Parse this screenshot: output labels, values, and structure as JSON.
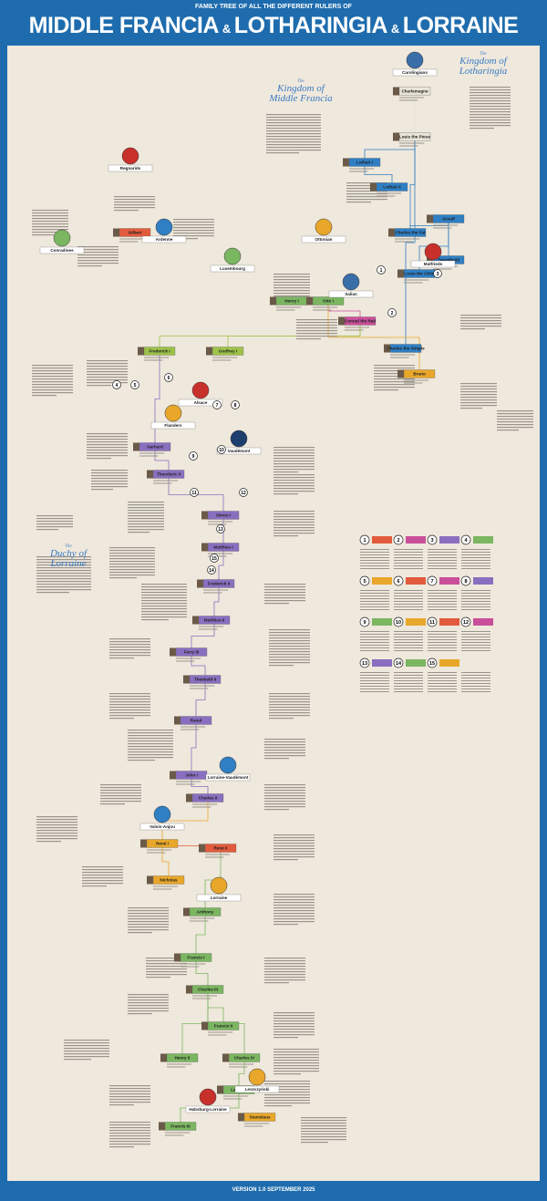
{
  "header": {
    "supertitle": "FAMILY TREE OF ALL THE DIFFERENT RULERS OF",
    "title": [
      "MIDDLE FRANCIA",
      "&",
      "LOTHARINGIA",
      "&",
      "LORRAINE"
    ]
  },
  "sections": [
    {
      "prefix": "The",
      "name_lines": [
        "Kingdom of",
        "Middle Francia"
      ]
    },
    {
      "prefix": "The",
      "name_lines": [
        "Kingdom of",
        "Lotharingia"
      ]
    },
    {
      "prefix": "The",
      "name_lines": [
        "Duchy of",
        "Lorraine"
      ]
    }
  ],
  "houses": [
    "Carolingians",
    "Regnarids",
    "Ardenne",
    "Conradines",
    "Luxembourg",
    "Ottonian",
    "Salian",
    "Matfrieds",
    "Alsace",
    "Flanders",
    "Vaudémont",
    "Lorraine-Vaudémont",
    "Valois-Anjou",
    "Lorraine",
    "Habsburg-Lorraine",
    "Leszczyński"
  ],
  "rulers": [
    {
      "name": "Charlemagne",
      "color": "#e9e4d8"
    },
    {
      "name": "Louis the Pious",
      "color": "#e9e4d8"
    },
    {
      "name": "Lothair I",
      "color": "#2f7fc4"
    },
    {
      "name": "Lothair II",
      "color": "#2f7fc4"
    },
    {
      "name": "Charles the Fat",
      "color": "#2f7fc4"
    },
    {
      "name": "Arnulf",
      "color": "#2f7fc4"
    },
    {
      "name": "Zwentibold",
      "color": "#2f7fc4"
    },
    {
      "name": "Louis the Child",
      "color": "#2f7fc4"
    },
    {
      "name": "Charles the Simple",
      "color": "#2f7fc4"
    },
    {
      "name": "Gilbert",
      "color": "#e25b3c"
    },
    {
      "name": "Henry I",
      "color": "#7bb661"
    },
    {
      "name": "Otto I",
      "color": "#7bb661"
    },
    {
      "name": "Conrad the Red",
      "color": "#c94f9a"
    },
    {
      "name": "Bruno",
      "color": "#e8a72a"
    },
    {
      "name": "Frederick I",
      "color": "#9ec24a"
    },
    {
      "name": "Godfrey I",
      "color": "#9ec24a"
    },
    {
      "name": "Gerhard",
      "color": "#8a6fc0"
    },
    {
      "name": "Theodoric II",
      "color": "#8a6fc0"
    },
    {
      "name": "Simon I",
      "color": "#8a6fc0"
    },
    {
      "name": "Matthias I",
      "color": "#8a6fc0"
    },
    {
      "name": "Frederick II",
      "color": "#8a6fc0"
    },
    {
      "name": "Matthias II",
      "color": "#8a6fc0"
    },
    {
      "name": "Ferry III",
      "color": "#8a6fc0"
    },
    {
      "name": "Theobald II",
      "color": "#8a6fc0"
    },
    {
      "name": "Raoul",
      "color": "#8a6fc0"
    },
    {
      "name": "John I",
      "color": "#8a6fc0"
    },
    {
      "name": "Charles II",
      "color": "#8a6fc0"
    },
    {
      "name": "René I",
      "color": "#e8a72a"
    },
    {
      "name": "Nicholas",
      "color": "#e8a72a"
    },
    {
      "name": "René II",
      "color": "#e25b3c"
    },
    {
      "name": "Anthony",
      "color": "#7bb661"
    },
    {
      "name": "Francis I",
      "color": "#7bb661"
    },
    {
      "name": "Charles III",
      "color": "#7bb661"
    },
    {
      "name": "Henry II",
      "color": "#7bb661"
    },
    {
      "name": "Charles IV",
      "color": "#7bb661"
    },
    {
      "name": "Francis II",
      "color": "#7bb661"
    },
    {
      "name": "Leopold",
      "color": "#7bb661"
    },
    {
      "name": "Francis III",
      "color": "#7bb661"
    },
    {
      "name": "Stanislaus",
      "color": "#e8a72a"
    }
  ],
  "legend": [
    "1",
    "2",
    "3",
    "4",
    "5",
    "6",
    "7",
    "8",
    "9",
    "10",
    "11",
    "12",
    "13",
    "14",
    "15"
  ],
  "footer": {
    "version": "VERSION 1.0 SEPTEMBER 2025"
  }
}
